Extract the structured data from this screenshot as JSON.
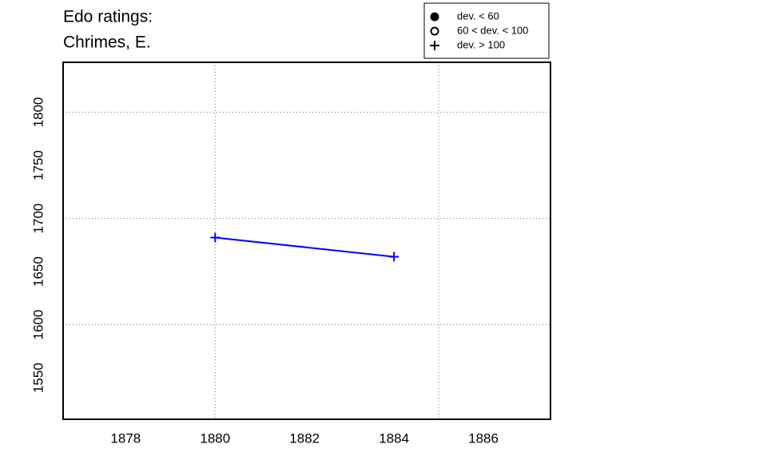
{
  "chart_data": {
    "type": "line",
    "title": [
      "Edo ratings:",
      "Chrimes, E."
    ],
    "x": [
      1880,
      1884
    ],
    "series": [
      {
        "name": "Chrimes, E.",
        "color": "#0000ff",
        "values": [
          1682,
          1664
        ],
        "markers": [
          "plus",
          "plus"
        ]
      }
    ],
    "xlim": [
      1876.6,
      1887.5
    ],
    "ylim": [
      1511,
      1847
    ],
    "xticks": [
      1878,
      1880,
      1882,
      1884,
      1886
    ],
    "yticks": [
      1550,
      1600,
      1650,
      1700,
      1750,
      1800
    ],
    "xgrid": [
      1880,
      1885
    ],
    "ygrid": [
      1600,
      1700,
      1800
    ],
    "legend": {
      "position": "top",
      "items": [
        {
          "label": "dev. < 60",
          "marker": "filled-circle"
        },
        {
          "label": "60 < dev. < 100",
          "marker": "open-circle"
        },
        {
          "label": "dev. > 100",
          "marker": "plus"
        }
      ]
    }
  }
}
